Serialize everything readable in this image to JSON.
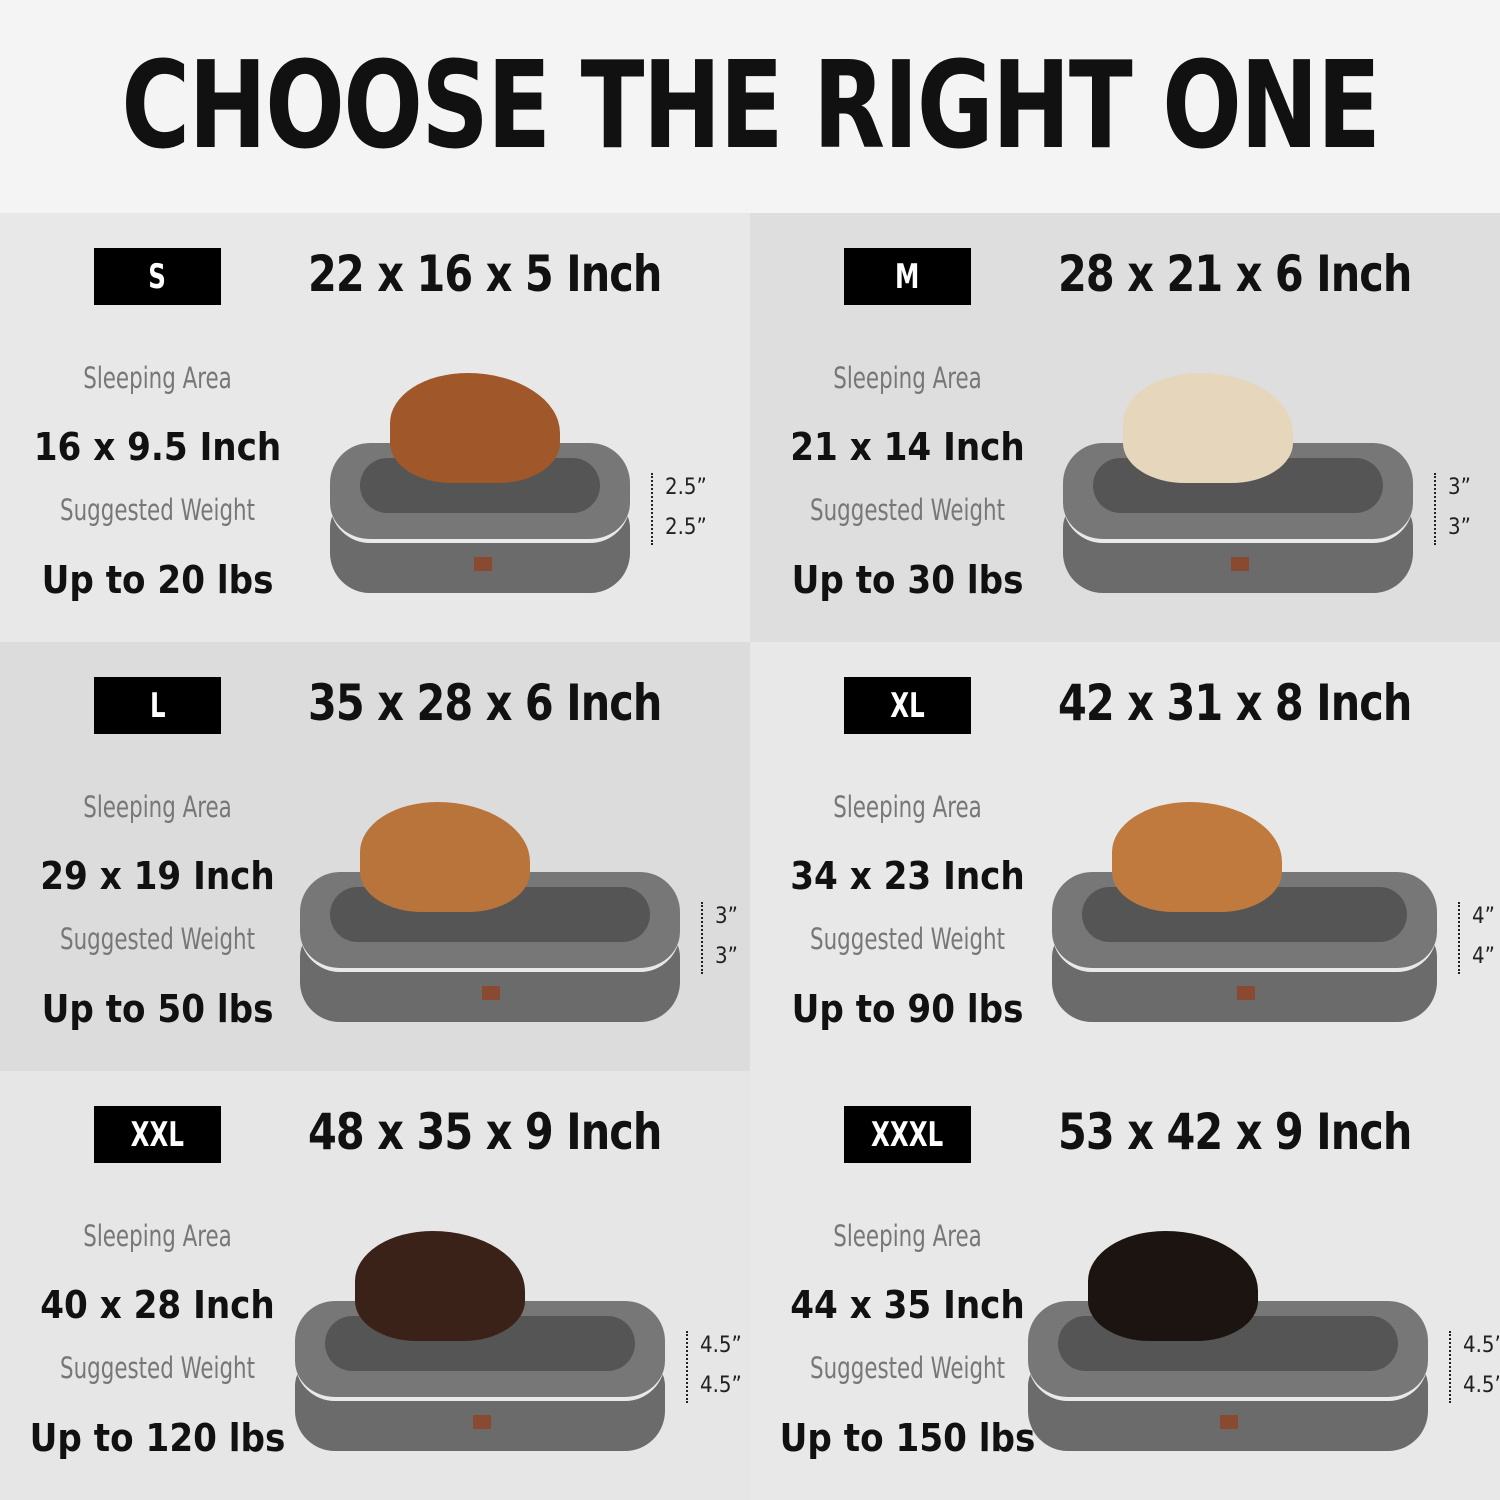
{
  "title": "CHOOSE THE RIGHT ONE",
  "labels": {
    "sleeping_area": "Sleeping Area",
    "suggested_weight": "Suggested Weight"
  },
  "sizes": [
    {
      "size": "S",
      "dimensions": "22 x 16 x 5 Inch",
      "sleeping_area": "16 x 9.5 Inch",
      "weight": "Up to 20 lbs",
      "heights": [
        "2.5”",
        "2.5”"
      ],
      "dog_color": "#a0582a",
      "bg": "#e8e8e8"
    },
    {
      "size": "M",
      "dimensions": "28 x 21 x 6 Inch",
      "sleeping_area": "21 x 14 Inch",
      "weight": "Up to 30 lbs",
      "heights": [
        "3”",
        "3”"
      ],
      "dog_color": "#e6d6bc",
      "bg": "#dedede"
    },
    {
      "size": "L",
      "dimensions": "35 x 28 x 6 Inch",
      "sleeping_area": "29 x 19 Inch",
      "weight": "Up to 50 lbs",
      "heights": [
        "3”",
        "3”"
      ],
      "dog_color": "#b8743a",
      "bg": "#dcdcdc"
    },
    {
      "size": "XL",
      "dimensions": "42 x 31 x 8 Inch",
      "sleeping_area": "34 x 23 Inch",
      "weight": "Up to 90 lbs",
      "heights": [
        "4”",
        "4”"
      ],
      "dog_color": "#c07a3e",
      "bg": "#e8e8e8"
    },
    {
      "size": "XXL",
      "dimensions": "48 x 35 x 9 Inch",
      "sleeping_area": "40 x 28 Inch",
      "weight": "Up to 120 lbs",
      "heights": [
        "4.5”",
        "4.5”"
      ],
      "dog_color": "#3a2218",
      "bg": "#e6e6e6"
    },
    {
      "size": "XXXL",
      "dimensions": "53 x 42 x 9 Inch",
      "sleeping_area": "44 x 35 Inch",
      "weight": "Up to 150 lbs",
      "heights": [
        "4.5”",
        "4.5”"
      ],
      "dog_color": "#1c1410",
      "bg": "#e8e8e8"
    }
  ]
}
